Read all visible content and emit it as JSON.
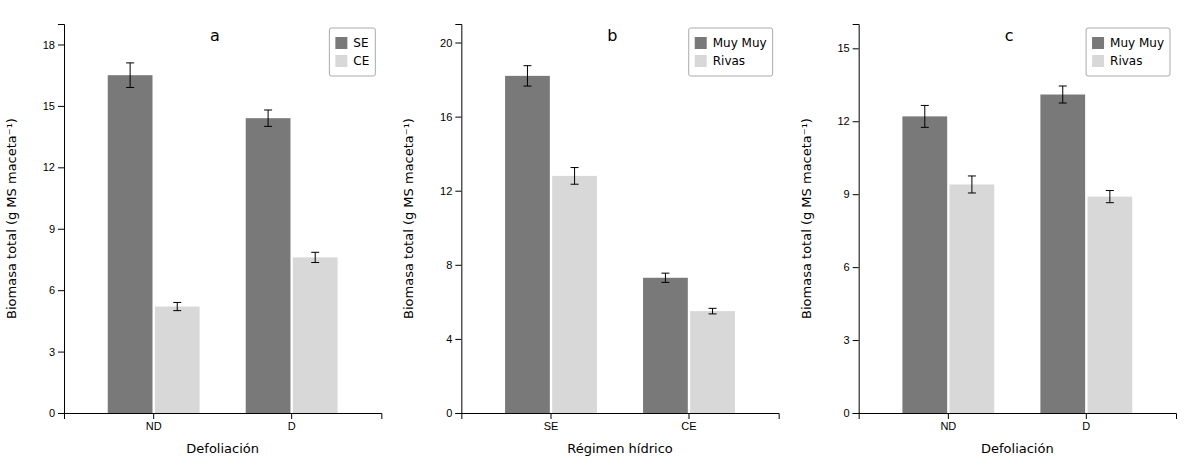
{
  "chart_data": [
    {
      "type": "bar",
      "title": "a",
      "xlabel": "Defoliación",
      "ylabel": "Biomasa total (g MS maceta⁻¹)",
      "categories": [
        "ND",
        "D"
      ],
      "series": [
        {
          "name": "SE",
          "color": "#797979",
          "values": [
            16.5,
            14.4
          ],
          "errors": [
            0.6,
            0.4
          ]
        },
        {
          "name": "CE",
          "color": "#d8d8d8",
          "values": [
            5.2,
            7.6
          ],
          "errors": [
            0.2,
            0.25
          ]
        }
      ],
      "ylim": [
        0,
        19
      ],
      "yticks": [
        0,
        3,
        6,
        9,
        12,
        15,
        18
      ],
      "legend": "upper right"
    },
    {
      "type": "bar",
      "title": "b",
      "xlabel": "Régimen hídrico",
      "ylabel": "Biomasa total (g MS maceta⁻¹)",
      "categories": [
        "SE",
        "CE"
      ],
      "series": [
        {
          "name": "Muy Muy",
          "color": "#797979",
          "values": [
            18.2,
            7.3
          ],
          "errors": [
            0.55,
            0.25
          ]
        },
        {
          "name": "Rivas",
          "color": "#d8d8d8",
          "values": [
            12.8,
            5.5
          ],
          "errors": [
            0.45,
            0.15
          ]
        }
      ],
      "ylim": [
        0,
        21
      ],
      "yticks": [
        0,
        4,
        8,
        12,
        16,
        20
      ],
      "legend": "upper right"
    },
    {
      "type": "bar",
      "title": "c",
      "xlabel": "Defoliación",
      "ylabel": "Biomasa total (g MS maceta⁻¹)",
      "categories": [
        "ND",
        "D"
      ],
      "series": [
        {
          "name": "Muy Muy",
          "color": "#797979",
          "values": [
            12.2,
            13.1
          ],
          "errors": [
            0.45,
            0.35
          ]
        },
        {
          "name": "Rivas",
          "color": "#d8d8d8",
          "values": [
            9.4,
            8.9
          ],
          "errors": [
            0.35,
            0.25
          ]
        }
      ],
      "ylim": [
        0,
        16
      ],
      "yticks": [
        0,
        3,
        6,
        9,
        12,
        15
      ],
      "legend": "upper right"
    }
  ]
}
